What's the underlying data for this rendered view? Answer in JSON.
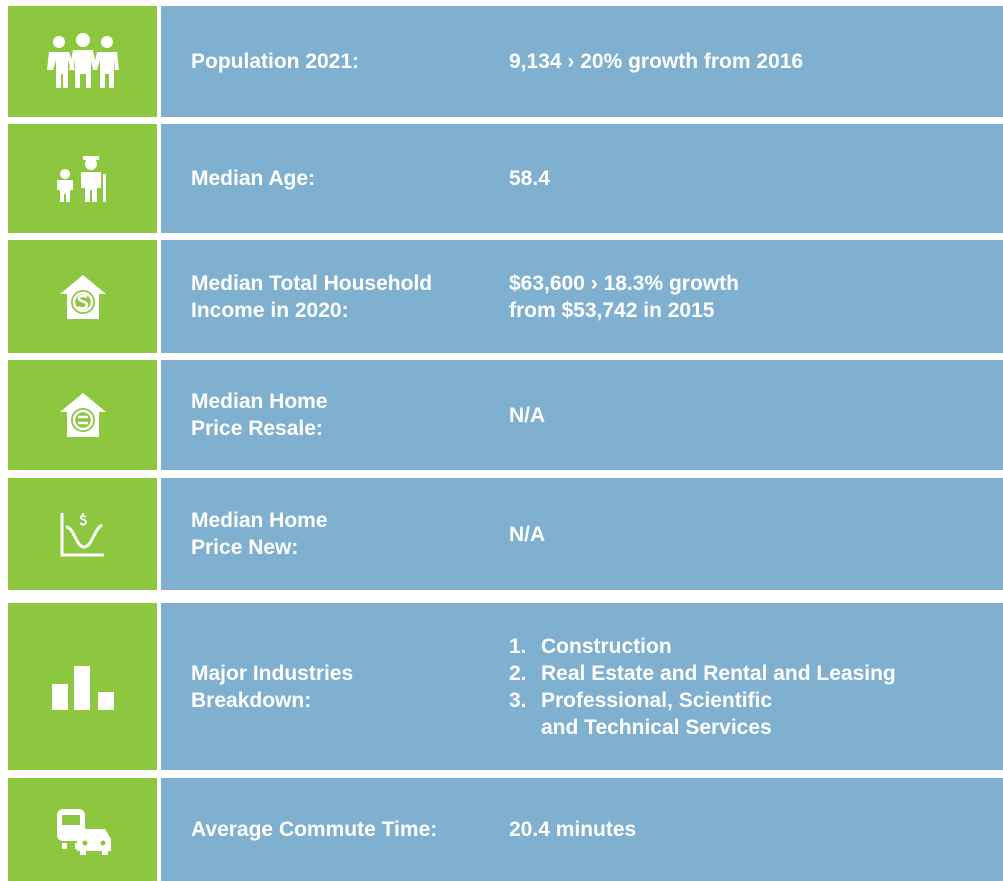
{
  "rows": [
    {
      "label": [
        "Population 2021:"
      ],
      "value": [
        "9,134 › 20% growth from 2016"
      ]
    },
    {
      "label": [
        "Median Age:"
      ],
      "value": [
        "58.4"
      ]
    },
    {
      "label": [
        "Median Total Household",
        "Income in 2020:"
      ],
      "value": [
        "$63,600 › 18.3% growth",
        "from $53,742 in 2015"
      ]
    },
    {
      "label": [
        "Median Home",
        "Price Resale:"
      ],
      "value": [
        "N/A"
      ]
    },
    {
      "label": [
        "Median Home",
        "Price New:"
      ],
      "value": [
        "N/A"
      ]
    },
    {
      "label": [
        "Major Industries",
        "Breakdown:"
      ],
      "items": [
        {
          "number": "1.",
          "text": [
            "Construction"
          ]
        },
        {
          "number": "2.",
          "text": [
            "Real Estate and Rental and Leasing"
          ]
        },
        {
          "number": "3.",
          "text": [
            "Professional, Scientific",
            "and Technical Services"
          ]
        }
      ]
    },
    {
      "label": [
        "Average Commute Time:"
      ],
      "value": [
        "20.4 minutes"
      ]
    }
  ]
}
